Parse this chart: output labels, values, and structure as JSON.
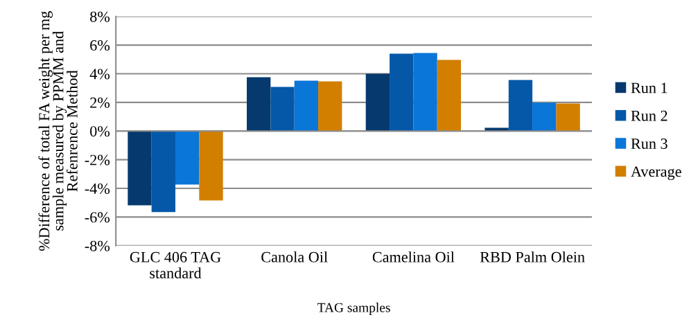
{
  "chart_data": {
    "type": "bar",
    "xlabel": "TAG samples",
    "ylabel": "%Difference of total FA weight per mg\nsample measured by PPMM and\nRefenrence Method",
    "categories": [
      "GLC 406 TAG\nstandard",
      "Canola Oil",
      "Camelina Oil",
      "RBD Palm Olein"
    ],
    "series": [
      {
        "name": "Run 1",
        "color": "#063a6e",
        "values": [
          -5.18,
          3.76,
          4.0,
          0.23
        ]
      },
      {
        "name": "Run 2",
        "color": "#0558a8",
        "values": [
          -5.66,
          3.08,
          5.4,
          3.56
        ]
      },
      {
        "name": "Run 3",
        "color": "#0a76d8",
        "values": [
          -3.73,
          3.52,
          5.45,
          1.98
        ]
      },
      {
        "name": "Average",
        "color": "#d27f00",
        "values": [
          -4.84,
          3.47,
          4.97,
          1.92
        ]
      }
    ],
    "ylim": [
      -8,
      8
    ],
    "yticks": [
      {
        "value": -8,
        "label": "-8%"
      },
      {
        "value": -6,
        "label": "-6%"
      },
      {
        "value": -4,
        "label": "-4%"
      },
      {
        "value": -2,
        "label": "-2%"
      },
      {
        "value": 0,
        "label": "0%"
      },
      {
        "value": 2,
        "label": "2%"
      },
      {
        "value": 4,
        "label": "4%"
      },
      {
        "value": 6,
        "label": "6%"
      },
      {
        "value": 8,
        "label": "8%"
      }
    ],
    "grid": "y",
    "legend": "right"
  }
}
